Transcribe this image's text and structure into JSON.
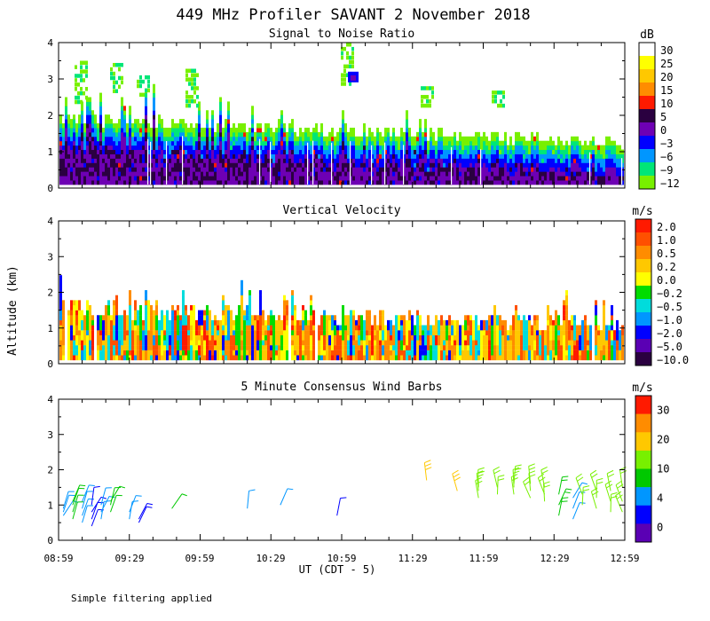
{
  "title": "449 MHz Profiler SAVANT  2 November 2018",
  "footer_note": "Simple filtering applied",
  "chart_data": [
    {
      "type": "heatmap",
      "title": "Signal to Noise Ratio",
      "colorbar_unit": "dB",
      "colorbar_labels": [
        "30",
        "25",
        "20",
        "15",
        "10",
        "5",
        "0",
        "−3",
        "−6",
        "−9",
        "−12"
      ],
      "colors": [
        "#ffffff",
        "#ffff00",
        "#ffc800",
        "#ff8c00",
        "#ff1a00",
        "#2a0040",
        "#6e00b4",
        "#0000ff",
        "#0096ff",
        "#00e678",
        "#78f000"
      ],
      "ylabel": "Altitude (km)",
      "ylim": [
        0,
        4
      ],
      "yticks": [
        "0",
        "1",
        "2",
        "3",
        "4"
      ],
      "xlim_minutes": [
        0,
        240
      ],
      "xticks": [
        "08:59",
        "09:29",
        "09:59",
        "10:29",
        "10:59",
        "11:29",
        "11:59",
        "12:29",
        "12:59"
      ],
      "xlabel": "UT  (CDT - 5)"
    },
    {
      "type": "heatmap",
      "title": "Vertical Velocity",
      "colorbar_unit": "m/s",
      "colorbar_labels": [
        "2.0",
        "1.0",
        "0.5",
        "0.2",
        "0.0",
        "−0.2",
        "−0.5",
        "−1.0",
        "−2.0",
        "−5.0",
        "−10.0"
      ],
      "colors": [
        "#ff1a00",
        "#ff5000",
        "#ff8c00",
        "#ffc800",
        "#ffff00",
        "#00dc00",
        "#00dcdc",
        "#0096ff",
        "#0000ff",
        "#5a00b4",
        "#2a0040"
      ],
      "ylabel": "Altitude (km)",
      "ylim": [
        0,
        4
      ],
      "yticks": [
        "0",
        "1",
        "2",
        "3",
        "4"
      ]
    },
    {
      "type": "scatter",
      "title": "5 Minute Consensus Wind Barbs",
      "colorbar_unit": "m/s",
      "colorbar_labels": [
        "30",
        "20",
        "10",
        "4",
        "0"
      ],
      "colors": [
        "#ff1a00",
        "#ff8c00",
        "#ffc800",
        "#78f000",
        "#00c800",
        "#0096ff",
        "#0000ff",
        "#5a00b4"
      ],
      "ylabel": "Altitude (km)",
      "ylim": [
        0,
        4
      ],
      "yticks": [
        "0",
        "1",
        "2",
        "3",
        "4"
      ],
      "xticks": [
        "08:59",
        "09:29",
        "09:59",
        "10:29",
        "10:59",
        "11:29",
        "11:59",
        "12:29",
        "12:59"
      ],
      "barb_groups": [
        {
          "t_min": 2,
          "alts_km": [
            0.7,
            0.8,
            0.9
          ],
          "speed_ms": 6
        },
        {
          "t_min": 6,
          "alts_km": [
            0.6,
            0.8,
            1.0,
            1.1
          ],
          "speed_ms": 7
        },
        {
          "t_min": 10,
          "alts_km": [
            0.5,
            0.7,
            0.9,
            1.1
          ],
          "speed_ms": 5
        },
        {
          "t_min": 14,
          "alts_km": [
            0.4,
            0.6,
            0.8,
            1.0
          ],
          "speed_ms": 3
        },
        {
          "t_min": 18,
          "alts_km": [
            0.6,
            0.8,
            1.0
          ],
          "speed_ms": 6
        },
        {
          "t_min": 22,
          "alts_km": [
            0.8,
            1.0,
            1.1
          ],
          "speed_ms": 7
        },
        {
          "t_min": 30,
          "alts_km": [
            0.6,
            0.8
          ],
          "speed_ms": 4
        },
        {
          "t_min": 34,
          "alts_km": [
            0.5,
            0.6
          ],
          "speed_ms": 2
        },
        {
          "t_min": 48,
          "alts_km": [
            0.9
          ],
          "speed_ms": 7
        },
        {
          "t_min": 80,
          "alts_km": [
            0.9
          ],
          "speed_ms": 6
        },
        {
          "t_min": 94,
          "alts_km": [
            1.0
          ],
          "speed_ms": 6
        },
        {
          "t_min": 118,
          "alts_km": [
            0.7
          ],
          "speed_ms": 2
        },
        {
          "t_min": 156,
          "alts_km": [
            1.7
          ],
          "speed_ms": 16
        },
        {
          "t_min": 169,
          "alts_km": [
            1.4
          ],
          "speed_ms": 16
        },
        {
          "t_min": 178,
          "alts_km": [
            1.2,
            1.4,
            1.5
          ],
          "speed_ms": 12
        },
        {
          "t_min": 186,
          "alts_km": [
            1.3,
            1.5
          ],
          "speed_ms": 11
        },
        {
          "t_min": 193,
          "alts_km": [
            1.3,
            1.5,
            1.6
          ],
          "speed_ms": 11
        },
        {
          "t_min": 200,
          "alts_km": [
            1.2,
            1.4,
            1.6
          ],
          "speed_ms": 10
        },
        {
          "t_min": 206,
          "alts_km": [
            1.1,
            1.3,
            1.5
          ],
          "speed_ms": 10
        },
        {
          "t_min": 212,
          "alts_km": [
            0.7,
            1.0,
            1.3
          ],
          "speed_ms": 8
        },
        {
          "t_min": 218,
          "alts_km": [
            0.6,
            0.9,
            1.2
          ],
          "speed_ms": 5
        },
        {
          "t_min": 222,
          "alts_km": [
            1.0,
            1.3
          ],
          "speed_ms": 10
        },
        {
          "t_min": 228,
          "alts_km": [
            0.9,
            1.2,
            1.4
          ],
          "speed_ms": 11
        },
        {
          "t_min": 234,
          "alts_km": [
            0.8,
            1.1,
            1.4
          ],
          "speed_ms": 11
        },
        {
          "t_min": 239,
          "alts_km": [
            0.8,
            1.1,
            1.5
          ],
          "speed_ms": 11
        }
      ]
    }
  ]
}
